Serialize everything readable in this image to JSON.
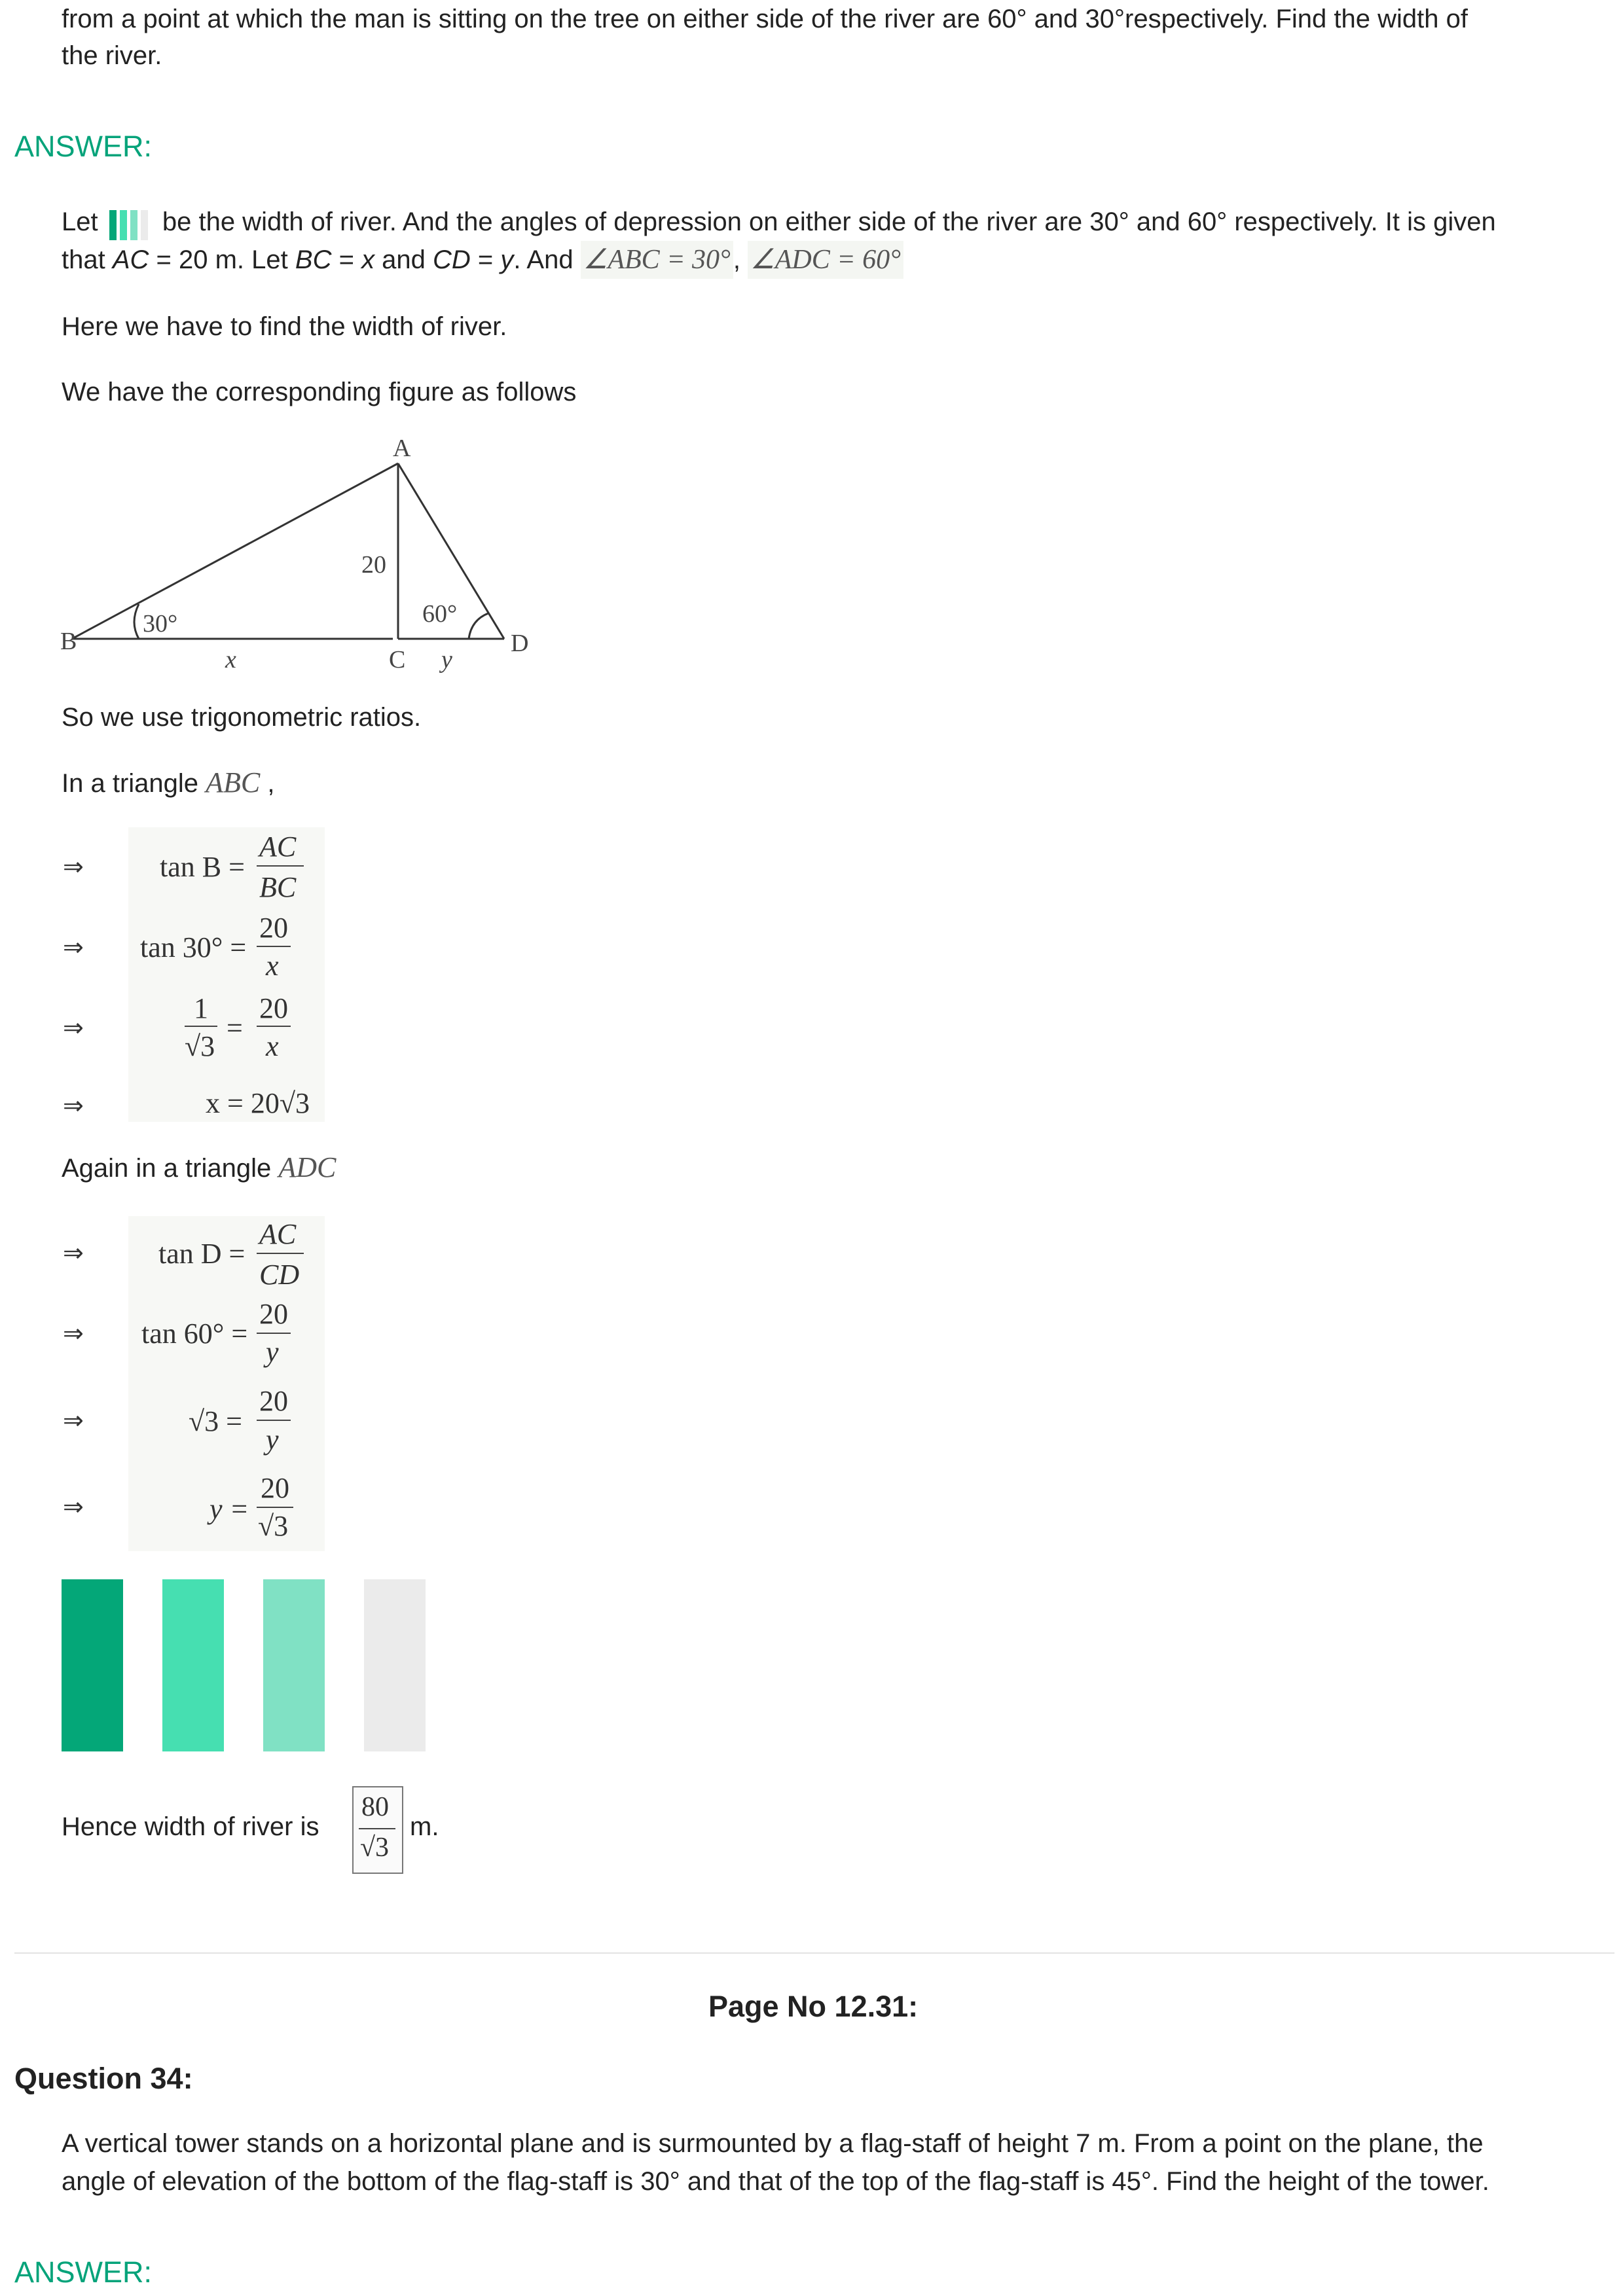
{
  "question_tail": {
    "line1": "from a point at which the man is sitting on the tree on either side of the river are 60° and 30°respectively. Find the width of",
    "line2": "the river."
  },
  "answer_label": "ANSWER:",
  "solution": {
    "para1_prefix": "Let",
    "para1_rest": "be the width of river. And the angles of depression on either side of the river are 30° and 60° respectively. It is given",
    "para1_line2_a": "that ",
    "para1_line2_AC": "AC",
    "para1_line2_b": " = 20 m. Let ",
    "para1_line2_BC": "BC",
    "para1_line2_c": " = ",
    "para1_line2_x": "x",
    "para1_line2_d": " and ",
    "para1_line2_CD": "CD",
    "para1_line2_e": " = ",
    "para1_line2_y": "y",
    "para1_line2_f": ". And ",
    "angle_abc": "∠ABC = 30°",
    "comma": ",",
    "angle_adc": "∠ADC = 60°",
    "para2": "Here we have to find the width of river.",
    "para3": "We have the corresponding figure as follows",
    "para4": "So we use trigonometric ratios.",
    "para5_prefix": "In a triangle ",
    "para5_tri": "ABC",
    "para5_suffix": " ,",
    "para6_prefix": "Again in a triangle ",
    "para6_tri": "ADC",
    "conclusion_prefix": "Hence width of river is",
    "conclusion_num": "80",
    "conclusion_den": "√3",
    "conclusion_suffix": "m."
  },
  "figure": {
    "labels": {
      "A": "A",
      "B": "B",
      "C": "C",
      "D": "D",
      "height": "20",
      "angle_b": "30°",
      "angle_d": "60°",
      "x": "x",
      "y": "y"
    }
  },
  "math_abc": {
    "arrow": "⇒",
    "r1_left": "tan B =",
    "r1_num": "AC",
    "r1_den": "BC",
    "r2_left": "tan 30° =",
    "r2_num": "20",
    "r2_den": "x",
    "r3_lnum": "1",
    "r3_lden": "√3",
    "r3_eq": "=",
    "r3_num": "20",
    "r3_den": "x",
    "r4": "x = 20√3"
  },
  "math_adc": {
    "r1_left": "tan D =",
    "r1_num": "AC",
    "r1_den": "CD",
    "r2_left": "tan 60° =",
    "r2_num": "20",
    "r2_den": "y",
    "r3_left": "√3 =",
    "r3_num": "20",
    "r3_den": "y",
    "r4_left": "y =",
    "r4_num": "20",
    "r4_den": "√3"
  },
  "colors": {
    "accent": "#05a37a",
    "bar1": "#04a778",
    "bar2": "#46dfb1",
    "bar3": "#80e1c4",
    "bar4": "#ebebeb"
  },
  "footer": {
    "page_no": "Page No 12.31:",
    "question_label": "Question 34:",
    "q34_line1": "A vertical tower stands on a horizontal plane and is surmounted by a flag-staff of height 7 m. From a point on the plane, the",
    "q34_line2": "angle of elevation of the bottom of the flag-staff is 30° and that of the top of the flag-staff is 45°. Find the height of the tower.",
    "answer_label": "ANSWER:"
  }
}
